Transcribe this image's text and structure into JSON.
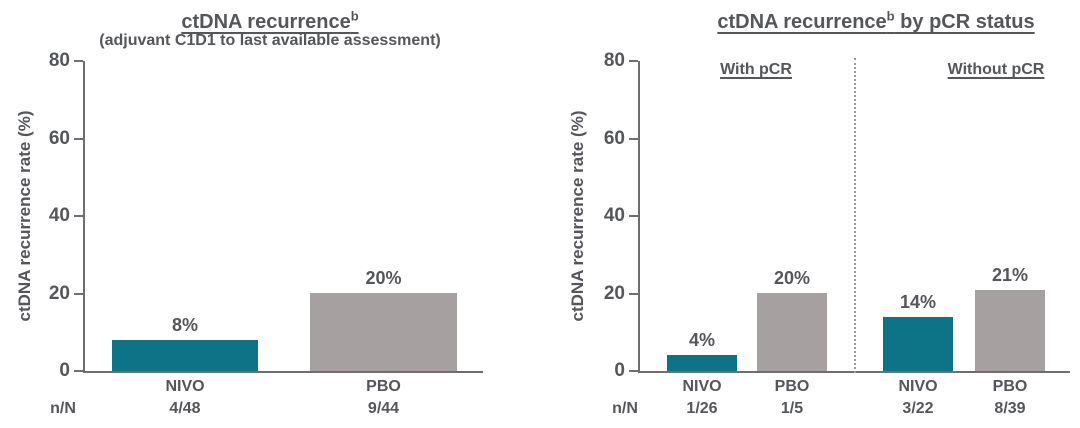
{
  "colors": {
    "nivo_teal": "#0d7488",
    "pbo_gray": "#a6a1a0",
    "text": "#54565a",
    "axis": "#6d6e71",
    "divider": "#9a9a9a"
  },
  "chart_data": [
    {
      "type": "bar",
      "title_main": "ctDNA recurrence",
      "title_sup": "b",
      "title_suffix": "",
      "subtitle": "(adjuvant C1D1 to last available assessment)",
      "ylabel": "ctDNA recurrence rate (%)",
      "ylim": [
        0,
        80
      ],
      "yticks": [
        0,
        20,
        40,
        60,
        80
      ],
      "grid": false,
      "row_header": "n/N",
      "categories": [
        "NIVO",
        "PBO"
      ],
      "bars": [
        {
          "category": "NIVO",
          "value": 8,
          "value_label": "8%",
          "n_over_N": "4/48",
          "color_key": "nivo_teal"
        },
        {
          "category": "PBO",
          "value": 20,
          "value_label": "20%",
          "n_over_N": "9/44",
          "color_key": "pbo_gray"
        }
      ]
    },
    {
      "type": "bar",
      "title_main": "ctDNA recurrence",
      "title_sup": "b",
      "title_suffix": " by pCR status",
      "subtitle": "",
      "ylabel": "ctDNA recurrence rate (%)",
      "ylim": [
        0,
        80
      ],
      "yticks": [
        0,
        20,
        40,
        60,
        80
      ],
      "grid": false,
      "row_header": "n/N",
      "divider_style": "dotted",
      "groups": [
        {
          "label": "With pCR",
          "bars": [
            {
              "category": "NIVO",
              "value": 4,
              "value_label": "4%",
              "n_over_N": "1/26",
              "color_key": "nivo_teal"
            },
            {
              "category": "PBO",
              "value": 20,
              "value_label": "20%",
              "n_over_N": "1/5",
              "color_key": "pbo_gray"
            }
          ]
        },
        {
          "label": "Without pCR",
          "bars": [
            {
              "category": "NIVO",
              "value": 14,
              "value_label": "14%",
              "n_over_N": "3/22",
              "color_key": "nivo_teal"
            },
            {
              "category": "PBO",
              "value": 21,
              "value_label": "21%",
              "n_over_N": "8/39",
              "color_key": "pbo_gray"
            }
          ]
        }
      ]
    }
  ]
}
